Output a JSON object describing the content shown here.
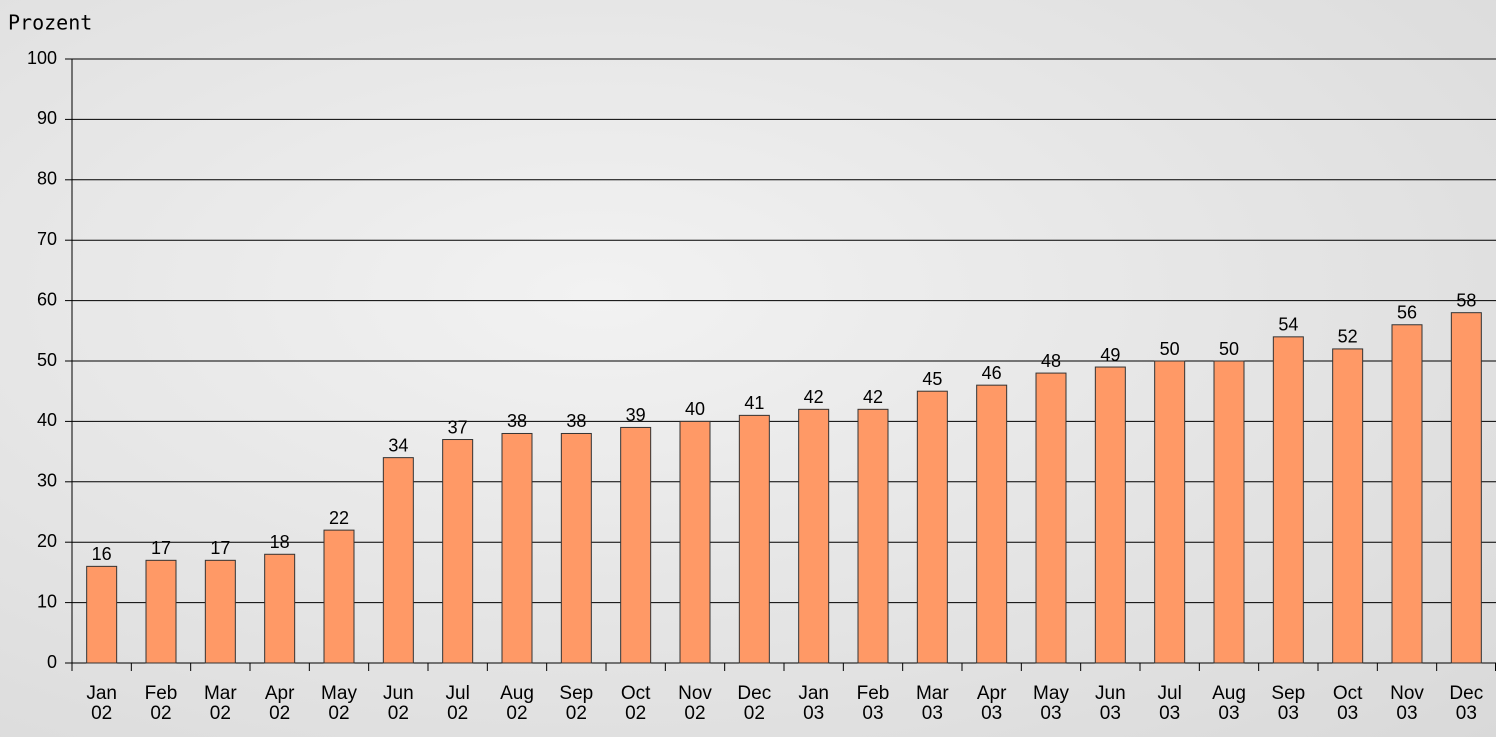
{
  "chart_data": {
    "type": "bar",
    "title": "Prozent",
    "categories": [
      "Jan\n02",
      "Feb\n02",
      "Mar\n02",
      "Apr\n02",
      "May\n02",
      "Jun\n02",
      "Jul\n02",
      "Aug\n02",
      "Sep\n02",
      "Oct\n02",
      "Nov\n02",
      "Dec\n02",
      "Jan\n03",
      "Feb\n03",
      "Mar\n03",
      "Apr\n03",
      "May\n03",
      "Jun\n03",
      "Jul\n03",
      "Aug\n03",
      "Sep\n03",
      "Oct\n03",
      "Nov\n03",
      "Dec\n03"
    ],
    "values": [
      16,
      17,
      17,
      18,
      22,
      34,
      37,
      38,
      38,
      39,
      40,
      41,
      42,
      42,
      45,
      46,
      48,
      49,
      50,
      50,
      54,
      52,
      56,
      58
    ],
    "color": "#ff9966",
    "ylim": [
      0,
      100
    ],
    "yticks": [
      0,
      10,
      20,
      30,
      40,
      50,
      60,
      70,
      80,
      90,
      100
    ],
    "grid": true
  }
}
